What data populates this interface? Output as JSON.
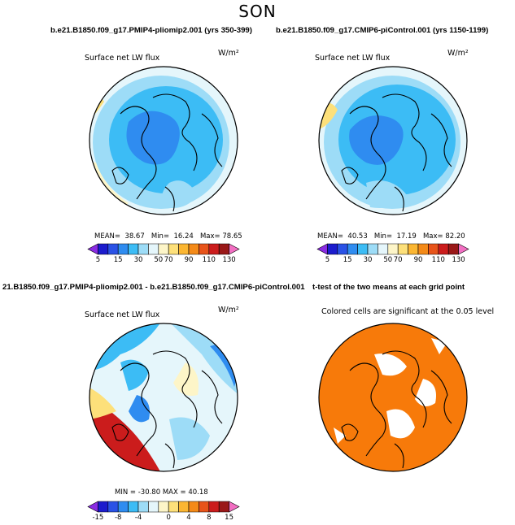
{
  "season": "SON",
  "titles": {
    "left": "b.e21.B1850.f09_g17.PMIP4-pliomip2.001 (yrs 350-399)",
    "right": "b.e21.B1850.f09_g17.CMIP6-piControl.001 (yrs 1150-1199)",
    "diff": "21.B1850.f09_g17.PMIP4-pliomip2.001 - b.e21.B1850.f09_g17.CMIP6-piControl.001",
    "ttest": "t-test of the two means at each grid point"
  },
  "panels": {
    "tl": {
      "variable": "Surface net LW flux",
      "units": "W/m²",
      "mean_label": "MEAN=",
      "mean": "38.67",
      "min_label": "Min=",
      "min": "16.24",
      "max_label": "Max=",
      "max": "78.65"
    },
    "tr": {
      "variable": "Surface net LW flux",
      "units": "W/m²",
      "mean_label": "MEAN=",
      "mean": "40.53",
      "min_label": "Min=",
      "min": "17.19",
      "max_label": "Max=",
      "max": "82.20"
    },
    "bl": {
      "variable": "Surface net LW flux",
      "units": "W/m²",
      "stats": "MIN = -30.80  MAX =  40.18"
    },
    "br": {
      "caption": "Colored cells are significant at the 0.05 level"
    }
  },
  "colorbar_abs": {
    "colors": [
      "#8a2be2",
      "#1c1ccd",
      "#2a52e6",
      "#2f8cf0",
      "#3cbcf5",
      "#9ddcf7",
      "#e5f6fb",
      "#fdf5c8",
      "#fde07a",
      "#fbb632",
      "#f48a18",
      "#e8541a",
      "#cb1c1c",
      "#9a1818",
      "#f26ec2"
    ],
    "labels": [
      "5",
      "15",
      "30",
      "50",
      "70",
      "90",
      "110",
      "130"
    ]
  },
  "colorbar_diff": {
    "colors": [
      "#8a2be2",
      "#1c1ccd",
      "#2a52e6",
      "#2f8cf0",
      "#3cbcf5",
      "#9ddcf7",
      "#e5f6fb",
      "#fdf5c8",
      "#fde07a",
      "#fbb632",
      "#f48a18",
      "#e8541a",
      "#cb1c1c",
      "#9a1818",
      "#f26ec2"
    ],
    "labels": [
      "-15",
      "-8",
      "-4",
      "0",
      "4",
      "8",
      "15"
    ]
  },
  "map_colors": {
    "ocean_blue": "#3cbcf5",
    "mid_blue": "#2f8cf0",
    "light_blue": "#9ddcf7",
    "pale": "#e5f6fb",
    "cream": "#fdf5c8",
    "yellow": "#fde07a",
    "red": "#cb1c1c",
    "significant": "#f77a0a"
  }
}
